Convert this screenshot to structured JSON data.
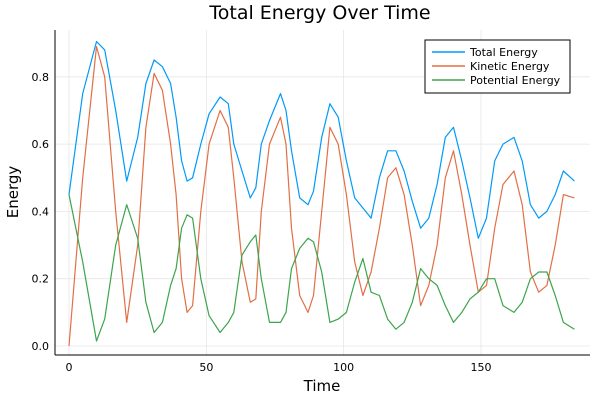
{
  "chart_data": {
    "type": "line",
    "title": "Total Energy Over Time",
    "xlabel": "Time",
    "ylabel": "Energy",
    "xlim": [
      -5,
      189
    ],
    "ylim": [
      -0.02,
      0.94
    ],
    "xticks": [
      0,
      50,
      100,
      150
    ],
    "xtick_labels": [
      "0",
      "50",
      "100",
      "150"
    ],
    "yticks": [
      0.0,
      0.2,
      0.4,
      0.6,
      0.8
    ],
    "ytick_labels": [
      "0.0",
      "0.2",
      "0.4",
      "0.6",
      "0.8"
    ],
    "grid": true,
    "legend_position": "top-right",
    "x": [
      0,
      5,
      10,
      13,
      17,
      21,
      25,
      28,
      31,
      34,
      37,
      39,
      41,
      43,
      45,
      48,
      51,
      55,
      58,
      60,
      63,
      66,
      68,
      70,
      73,
      77,
      79,
      81,
      84,
      87,
      89,
      92,
      95,
      98,
      101,
      104,
      107,
      110,
      113,
      116,
      119,
      122,
      125,
      128,
      131,
      134,
      137,
      140,
      143,
      146,
      149,
      152,
      155,
      158,
      162,
      165,
      168,
      171,
      174,
      177,
      180,
      184
    ],
    "series": [
      {
        "name": "Total Energy",
        "color": "#009af9",
        "values": [
          0.45,
          0.75,
          0.905,
          0.88,
          0.7,
          0.49,
          0.62,
          0.78,
          0.85,
          0.83,
          0.78,
          0.68,
          0.55,
          0.49,
          0.5,
          0.6,
          0.69,
          0.74,
          0.72,
          0.6,
          0.52,
          0.44,
          0.47,
          0.6,
          0.67,
          0.75,
          0.7,
          0.58,
          0.44,
          0.42,
          0.46,
          0.62,
          0.72,
          0.68,
          0.55,
          0.44,
          0.41,
          0.38,
          0.5,
          0.58,
          0.58,
          0.52,
          0.43,
          0.35,
          0.38,
          0.48,
          0.62,
          0.65,
          0.55,
          0.44,
          0.32,
          0.38,
          0.55,
          0.6,
          0.62,
          0.55,
          0.42,
          0.38,
          0.4,
          0.45,
          0.52,
          0.49
        ]
      },
      {
        "name": "Kinetic Energy",
        "color": "#e26f46",
        "values": [
          0.0,
          0.5,
          0.89,
          0.8,
          0.4,
          0.07,
          0.3,
          0.65,
          0.81,
          0.76,
          0.6,
          0.45,
          0.2,
          0.1,
          0.12,
          0.4,
          0.6,
          0.7,
          0.65,
          0.5,
          0.25,
          0.13,
          0.14,
          0.4,
          0.6,
          0.68,
          0.6,
          0.35,
          0.15,
          0.1,
          0.15,
          0.4,
          0.65,
          0.6,
          0.45,
          0.25,
          0.15,
          0.22,
          0.35,
          0.5,
          0.53,
          0.45,
          0.3,
          0.12,
          0.18,
          0.3,
          0.5,
          0.58,
          0.45,
          0.3,
          0.16,
          0.18,
          0.35,
          0.48,
          0.52,
          0.42,
          0.22,
          0.16,
          0.18,
          0.3,
          0.45,
          0.44
        ]
      },
      {
        "name": "Potential Energy",
        "color": "#3da44d",
        "values": [
          0.45,
          0.25,
          0.015,
          0.08,
          0.3,
          0.42,
          0.32,
          0.13,
          0.04,
          0.07,
          0.18,
          0.23,
          0.35,
          0.39,
          0.38,
          0.2,
          0.09,
          0.04,
          0.07,
          0.1,
          0.27,
          0.31,
          0.33,
          0.2,
          0.07,
          0.07,
          0.1,
          0.23,
          0.29,
          0.32,
          0.31,
          0.22,
          0.07,
          0.08,
          0.1,
          0.19,
          0.26,
          0.16,
          0.15,
          0.08,
          0.05,
          0.07,
          0.13,
          0.23,
          0.2,
          0.18,
          0.12,
          0.07,
          0.1,
          0.14,
          0.16,
          0.2,
          0.2,
          0.12,
          0.1,
          0.13,
          0.2,
          0.22,
          0.22,
          0.15,
          0.07,
          0.05
        ]
      }
    ]
  }
}
